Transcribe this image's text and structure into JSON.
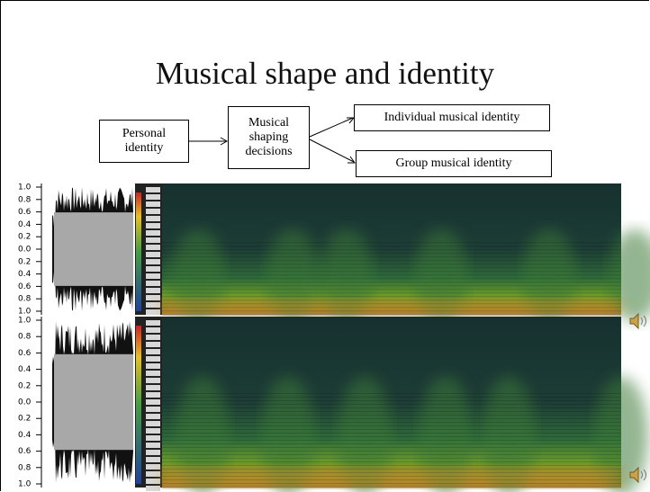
{
  "title": "Musical shape and identity",
  "nodes": [
    {
      "label": "Personal identity"
    },
    {
      "label": "Musical shaping decisions"
    },
    {
      "label": "Individual musical identity"
    },
    {
      "label": "Group musical identity"
    }
  ],
  "panels": [
    {
      "axis_labels": [
        "1.0",
        "0.8",
        "0.6",
        "0.4",
        "0.2",
        "0.0",
        "0.2",
        "0.4",
        "0.6",
        "0.8",
        "1.0"
      ]
    },
    {
      "axis_labels": [
        "1.0",
        "0.8",
        "0.6",
        "0.4",
        "0.2",
        "0.0",
        "0.2",
        "0.4",
        "0.6",
        "0.8",
        "1.0"
      ]
    }
  ]
}
